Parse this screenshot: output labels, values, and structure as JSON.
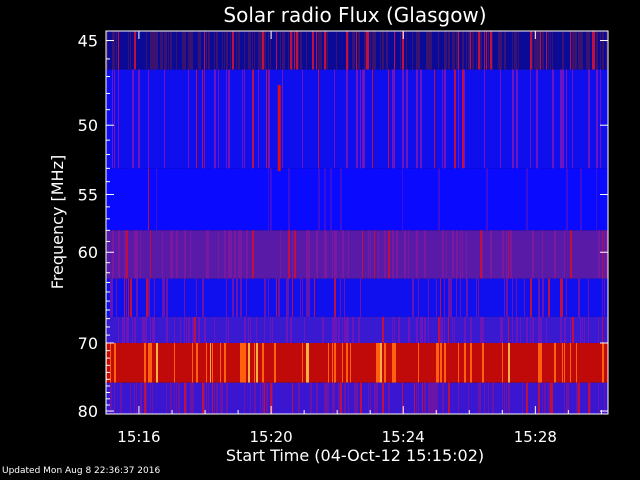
{
  "chart_data": {
    "type": "heatmap",
    "title": "Solar radio Flux (Glasgow)",
    "xlabel": "Start Time (04-Oct-12 15:15:02)",
    "ylabel": "Frequency [MHz]",
    "x_ticks": [
      "15:16",
      "15:20",
      "15:24",
      "15:28"
    ],
    "x_tick_minutes": [
      15.997,
      20.0,
      24.0,
      28.0
    ],
    "x_range_minutes": [
      15.0,
      30.2
    ],
    "y_ticks": [
      45,
      50,
      55,
      60,
      70,
      80
    ],
    "y_scale": "reciprocal",
    "y_range_mhz": [
      44.5,
      80.5
    ],
    "bands": [
      {
        "f_from": 44.5,
        "f_to": 46.6,
        "base": "#0a0a96",
        "stripe": "#3a1270",
        "density": 0.6
      },
      {
        "f_from": 46.6,
        "f_to": 53.0,
        "base": "#0f0fee",
        "stripe": "#6e14c0",
        "density": 0.25
      },
      {
        "f_from": 53.0,
        "f_to": 58.0,
        "base": "#0a0aff",
        "stripe": "#3c10d8",
        "density": 0.06
      },
      {
        "f_from": 58.0,
        "f_to": 62.6,
        "base": "#5a1aa8",
        "stripe": "#7a18a0",
        "density": 0.35
      },
      {
        "f_from": 62.6,
        "f_to": 66.8,
        "base": "#1010ee",
        "stripe": "#6a14b0",
        "density": 0.3
      },
      {
        "f_from": 66.8,
        "f_to": 70.0,
        "base": "#3a1ad0",
        "stripe": "#6a16b8",
        "density": 0.35
      },
      {
        "f_from": 70.0,
        "f_to": 75.5,
        "base": "#c00a0a",
        "stripe": "#ff6010",
        "density": 0.25
      },
      {
        "f_from": 75.5,
        "f_to": 80.5,
        "base": "#3a16d0",
        "stripe": "#6a14a8",
        "density": 0.35
      }
    ],
    "colorbar": "none",
    "grid": false,
    "legend": "none"
  },
  "footer": "Updated Mon Aug  8 22:36:37 2016"
}
